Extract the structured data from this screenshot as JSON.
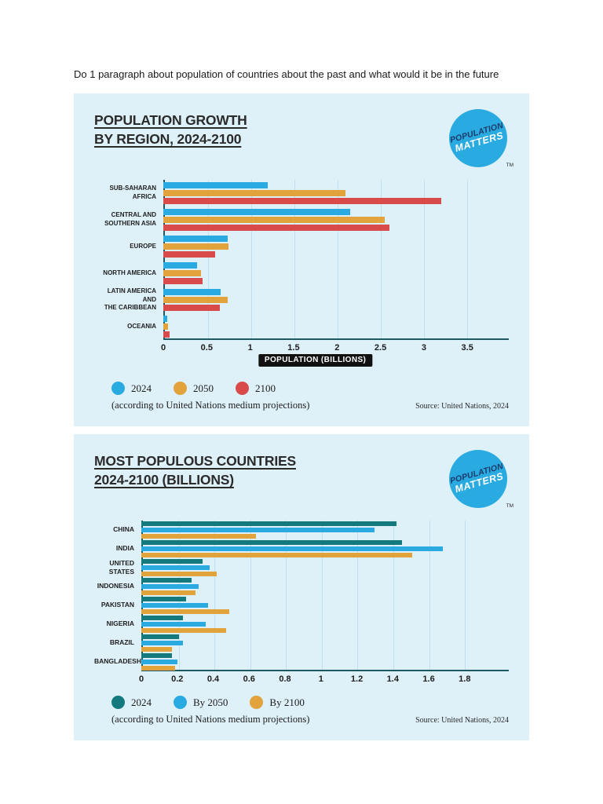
{
  "page": {
    "instruction": "Do 1 paragraph about population of countries about the past and what would it be in the future"
  },
  "logo": {
    "line1": "POPULATION",
    "line2": "MATTERS",
    "tm": "TM",
    "circle_color": "#29ABE2"
  },
  "colors": {
    "panel_bg": "#DEF0F8",
    "axis": "#1E5A64",
    "gridline": "#BFE0EE",
    "xlabel_bg": "#111111",
    "blue": "#29ABE2",
    "orange": "#E2A33D",
    "red": "#D94B4B",
    "teal": "#147A7E"
  },
  "chart_data": [
    {
      "type": "bar",
      "orientation": "horizontal",
      "title_lines": [
        "POPULATION GROWTH",
        "BY REGION, 2024-2100"
      ],
      "categories": [
        "SUB-SAHARAN\nAFRICA",
        "CENTRAL AND\nSOUTHERN ASIA",
        "EUROPE",
        "NORTH AMERICA",
        "LATIN AMERICA AND\nTHE CARIBBEAN",
        "OCEANIA"
      ],
      "series": [
        {
          "name": "2024",
          "color": "#29ABE2",
          "values": [
            1.2,
            2.15,
            0.74,
            0.39,
            0.66,
            0.046
          ]
        },
        {
          "name": "2050",
          "color": "#E2A33D",
          "values": [
            2.1,
            2.55,
            0.75,
            0.43,
            0.74,
            0.057
          ]
        },
        {
          "name": "2100",
          "color": "#D94B4B",
          "values": [
            3.2,
            2.6,
            0.6,
            0.45,
            0.65,
            0.069
          ]
        }
      ],
      "xlim": [
        0,
        3.5
      ],
      "ticks": [
        0,
        0.5,
        1,
        1.5,
        2,
        2.5,
        3,
        3.5
      ],
      "tick_labels": [
        "0",
        "0.5",
        "1",
        "1.5",
        "2",
        "2.5",
        "3",
        "3.5"
      ],
      "xlabel": "POPULATION (BILLIONS)",
      "grid": true,
      "legend_position": "bottom-left",
      "note": "(according to United Nations medium projections)",
      "source": "Source: United Nations, 2024"
    },
    {
      "type": "bar",
      "orientation": "horizontal",
      "title_lines": [
        "MOST POPULOUS COUNTRIES",
        "2024-2100 (BILLIONS)"
      ],
      "categories": [
        "CHINA",
        "INDIA",
        "UNITED\nSTATES",
        "INDONESIA",
        "PAKISTAN",
        "NIGERIA",
        "BRAZIL",
        "BANGLADESH"
      ],
      "series": [
        {
          "name": "2024",
          "color": "#147A7E",
          "values": [
            1.42,
            1.45,
            0.34,
            0.28,
            0.25,
            0.23,
            0.21,
            0.17
          ]
        },
        {
          "name": "By 2050",
          "color": "#29ABE2",
          "values": [
            1.3,
            1.68,
            0.38,
            0.32,
            0.37,
            0.36,
            0.23,
            0.2
          ]
        },
        {
          "name": "By 2100",
          "color": "#E2A33D",
          "values": [
            0.64,
            1.51,
            0.42,
            0.3,
            0.49,
            0.47,
            0.17,
            0.19
          ]
        }
      ],
      "xlim": [
        0,
        1.8
      ],
      "ticks": [
        0,
        0.2,
        0.4,
        0.6,
        0.8,
        1,
        1.2,
        1.4,
        1.6,
        1.8
      ],
      "tick_labels": [
        "0",
        "0.2",
        "0.4",
        "0.6",
        "0.8",
        "1",
        "1.2",
        "1.4",
        "1.6",
        "1.8"
      ],
      "xlabel": "",
      "grid": true,
      "legend_position": "bottom-left",
      "note": "(according to United Nations medium projections)",
      "source": "Source: United Nations, 2024"
    }
  ]
}
